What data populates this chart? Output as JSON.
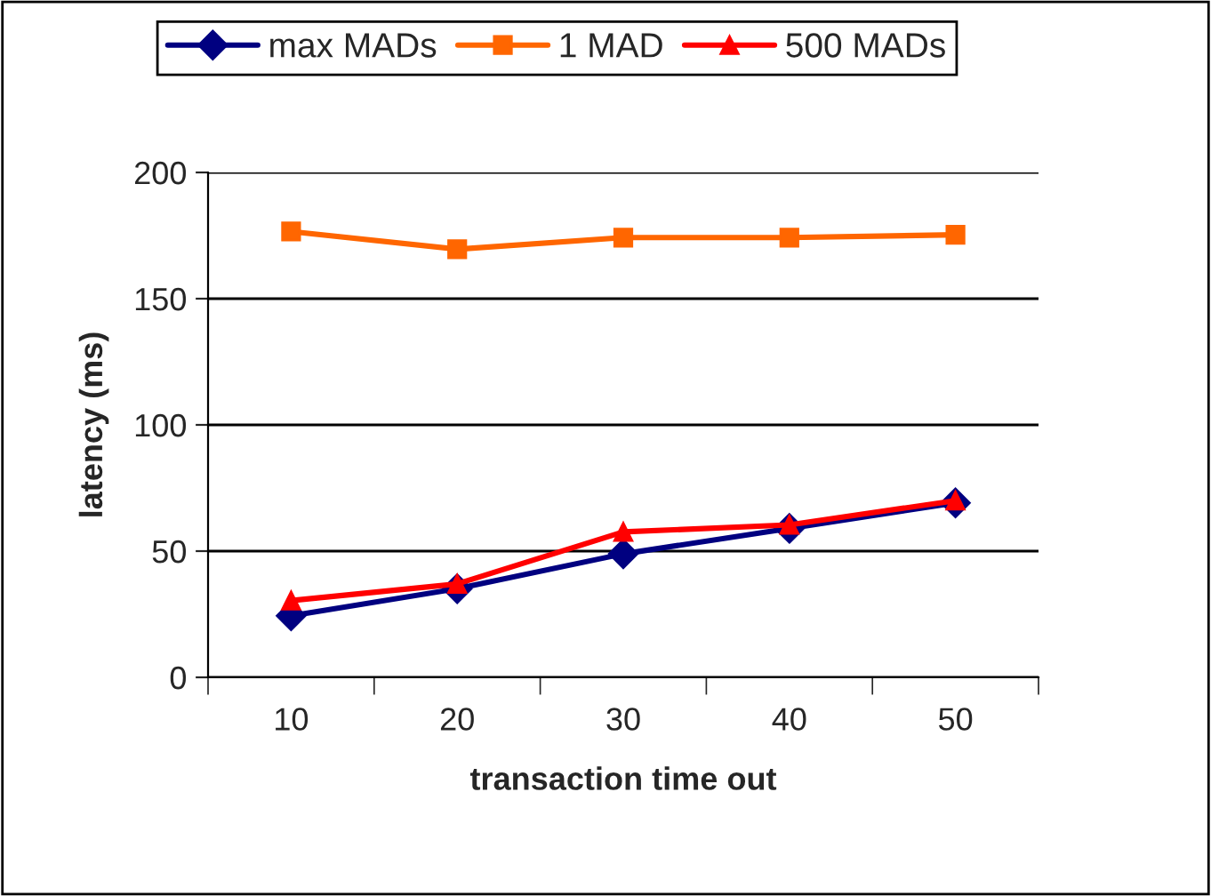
{
  "chart_data": {
    "type": "line",
    "xlabel": "transaction time out",
    "ylabel": "latency (ms)",
    "categories": [
      "10",
      "20",
      "30",
      "40",
      "50"
    ],
    "series": [
      {
        "name": "max MADs",
        "color": "#000080",
        "marker": "diamond",
        "values": [
          24.4,
          35.1,
          48.9,
          59.0,
          69.1
        ]
      },
      {
        "name": "1 MAD",
        "color": "#ff6600",
        "marker": "square",
        "values": [
          176.6,
          169.6,
          174.2,
          174.2,
          175.3
        ]
      },
      {
        "name": "500 MADs",
        "color": "#ff0000",
        "marker": "triangle",
        "values": [
          30.4,
          37.0,
          57.6,
          60.4,
          70.0
        ]
      }
    ],
    "ylim": [
      0,
      200
    ],
    "yticks": [
      0,
      50,
      100,
      150,
      200
    ],
    "grid": "y",
    "legend": "top",
    "line_style": "solid"
  }
}
